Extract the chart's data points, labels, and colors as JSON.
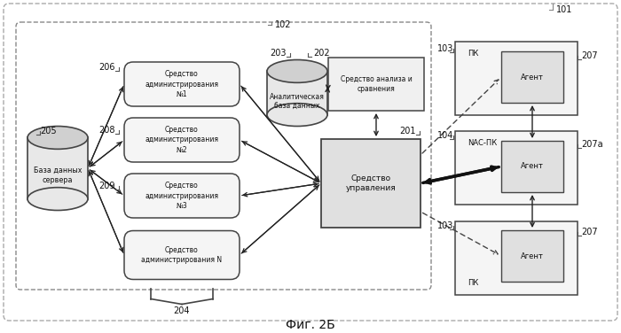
{
  "title": "Фиг. 2Б",
  "bg_color": "#ffffff",
  "text_db_server": "База данных\nсервера",
  "text_admin1": "Средство\nадминистрирования\n№1",
  "text_admin2": "Средство\nадминистрирования\n№2",
  "text_admin3": "Средство\nадминистрирования\n№3",
  "text_adminN": "Средство\nадминистрирования N",
  "text_analytic_db": "Аналитическая\nбаза данных",
  "text_analysis": "Средство анализа и\nсравнения",
  "text_control": "Средство\nуправления",
  "text_agent": "Агент",
  "text_nac": "NAC-ПК",
  "text_pk": "ПК",
  "label_101": "101",
  "label_102": "102",
  "label_201": "201",
  "label_202": "202",
  "label_203": "203",
  "label_204": "204",
  "label_205": "205",
  "label_206": "206",
  "label_207": "207",
  "label_207a": "207а",
  "label_208": "208",
  "label_209": "209",
  "label_103a": "103",
  "label_103b": "103",
  "label_104": "104"
}
